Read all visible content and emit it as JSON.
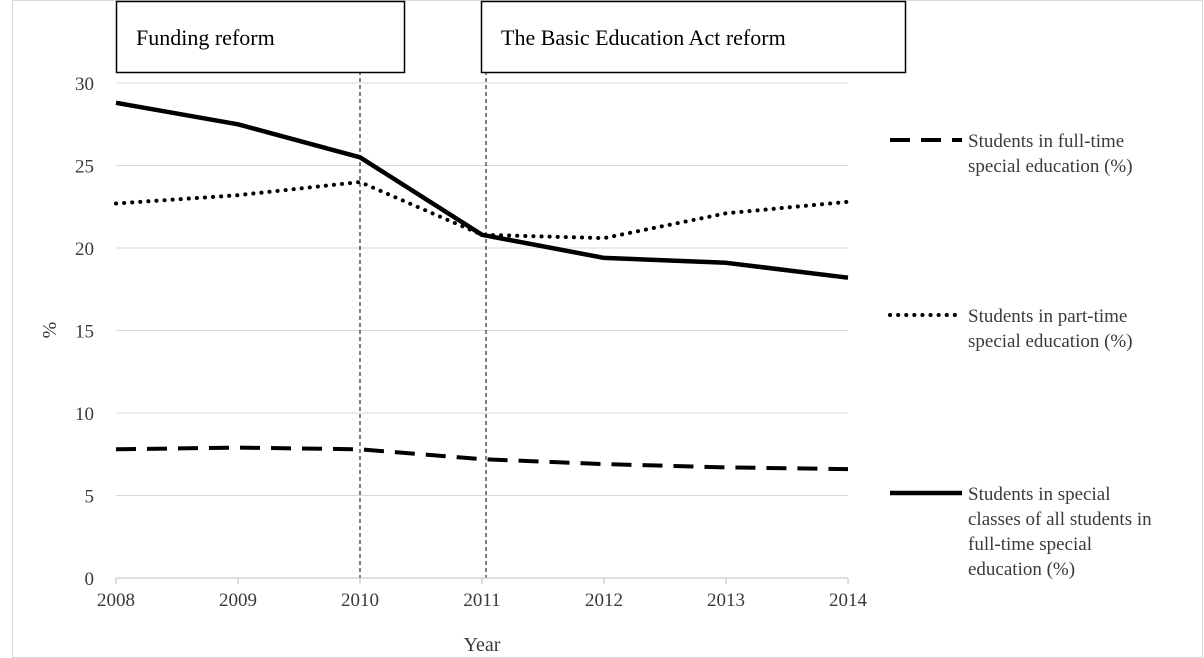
{
  "chart_data": {
    "type": "line",
    "title": "",
    "xlabel": "Year",
    "ylabel": "%",
    "x": [
      "2008",
      "2009",
      "2010",
      "2011",
      "2012",
      "2013",
      "2014"
    ],
    "ylim": [
      0,
      30
    ],
    "yticks": [
      "0",
      "5",
      "10",
      "15",
      "20",
      "25",
      "30"
    ],
    "grid": "horizontal",
    "legend_position": "right",
    "series": [
      {
        "name_lines": [
          "Students in full-time",
          "special education (%)"
        ],
        "style": "dashed",
        "color": "#000000",
        "values": [
          7.8,
          7.9,
          7.8,
          7.2,
          6.9,
          6.7,
          6.6
        ]
      },
      {
        "name_lines": [
          "Students in part-time",
          "special education (%)"
        ],
        "style": "dotted",
        "color": "#000000",
        "values": [
          22.7,
          23.2,
          24.0,
          20.8,
          20.6,
          22.1,
          22.8
        ]
      },
      {
        "name_lines": [
          "Students in special",
          "classes of all students in",
          "full-time special",
          "education (%)"
        ],
        "style": "solid",
        "color": "#000000",
        "values": [
          28.8,
          27.5,
          25.5,
          20.8,
          19.4,
          19.1,
          18.2
        ]
      }
    ],
    "annotations": [
      {
        "text": "Funding reform",
        "at_year": "2010"
      },
      {
        "text": "The Basic Education Act reform",
        "at_year": "2011"
      }
    ]
  }
}
